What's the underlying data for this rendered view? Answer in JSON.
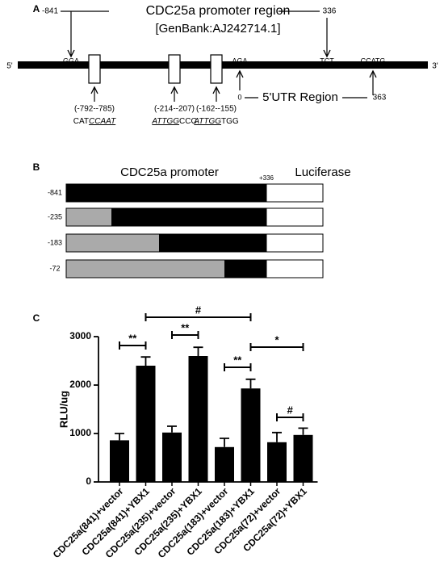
{
  "panel_a": {
    "letter": "A",
    "title": "CDC25a promoter region",
    "start": "-841",
    "end": "336",
    "accession": "[GenBank:AJ242714.1]",
    "five_prime": "5'",
    "three_prime": "3'",
    "codons": [
      "GGA",
      "AGA",
      "TCT",
      "CCATG"
    ],
    "utr_start": "0",
    "utr_label": "5'UTR Region",
    "utr_end": "363",
    "sites": [
      {
        "range": "(-792--785)",
        "seq": [
          {
            "text": "CAT"
          },
          {
            "text": "CCAAT",
            "style": "underline-italic"
          }
        ]
      },
      {
        "range": "(-214--207)",
        "seq": [
          {
            "text": "ATTGG",
            "style": "underline-italic"
          },
          {
            "text": "CCC"
          }
        ]
      },
      {
        "range": "(-162--155)",
        "seq": [
          {
            "text": "ATTGG",
            "style": "underline-italic"
          },
          {
            "text": "TGG"
          }
        ]
      }
    ]
  },
  "panel_b": {
    "letter": "B",
    "promoter_label": "CDC25a promoter",
    "end_label": "+336",
    "reporter_label": "Luciferase",
    "constructs": [
      "-841",
      "-235",
      "-183",
      "-72"
    ]
  },
  "chart_data": {
    "type": "bar",
    "letter": "C",
    "y_label": "RLU/ug",
    "categories": [
      "CDC25a(841)+vector",
      "CDC25a(841)+YBX1",
      "CDC25a(235)+vector",
      "CDC25a(235)+YBX1",
      "CDC25a(183)+vector",
      "CDC25a(183)+YBX1",
      "CDC25a(72)+vector",
      "CDC25a(72)+YBX1"
    ],
    "values": [
      860,
      2400,
      1020,
      2600,
      720,
      1930,
      820,
      970
    ],
    "errors": [
      140,
      180,
      130,
      180,
      180,
      190,
      200,
      140
    ],
    "color": "#000000",
    "ylim": [
      0,
      3000
    ],
    "yticks": [
      0,
      1000,
      2000,
      3000
    ],
    "annotations": [
      "**",
      "#",
      "**",
      "**",
      "*",
      "#"
    ]
  }
}
